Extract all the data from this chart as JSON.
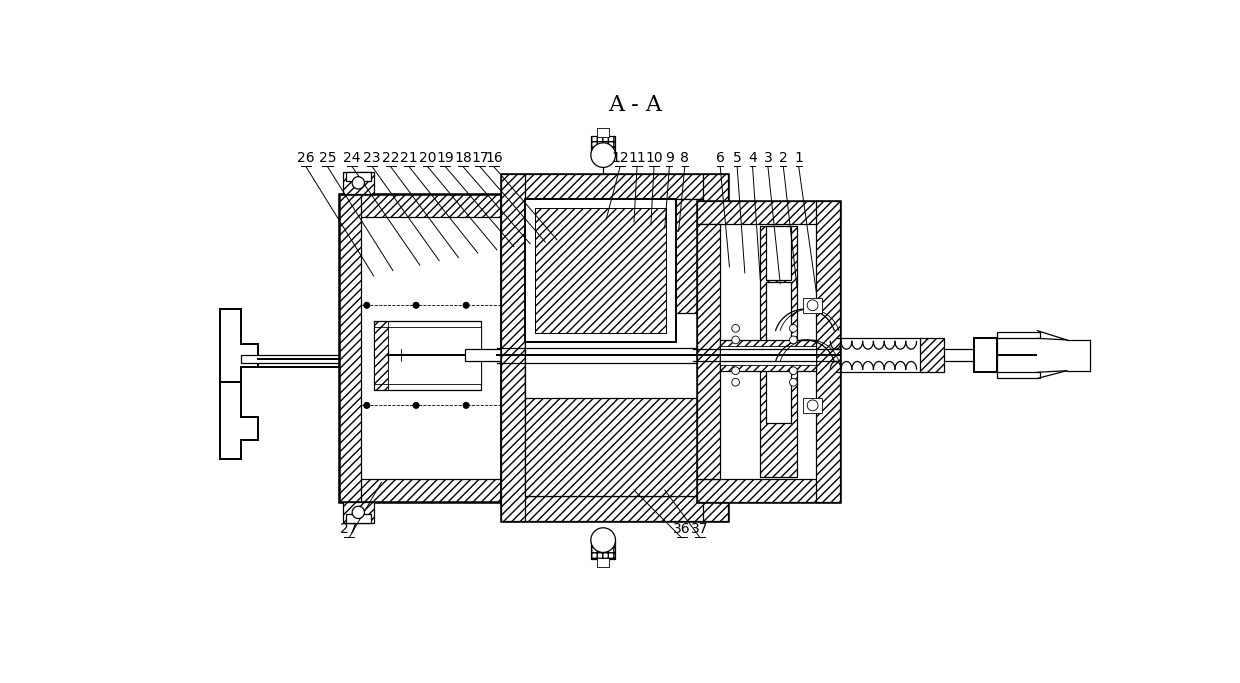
{
  "title": "A - A",
  "bg_color": "#ffffff",
  "line_color": "#000000",
  "title_fontsize": 16,
  "label_fontsize": 10,
  "fig_width": 12.4,
  "fig_height": 6.83,
  "dpi": 100,
  "top_labels_left": [
    [
      "26",
      192,
      108,
      280,
      252
    ],
    [
      "25",
      220,
      108,
      305,
      245
    ],
    [
      "24",
      252,
      108,
      340,
      238
    ],
    [
      "23",
      278,
      108,
      365,
      232
    ],
    [
      "22",
      302,
      108,
      390,
      228
    ],
    [
      "21",
      326,
      108,
      415,
      222
    ],
    [
      "20",
      350,
      108,
      440,
      218
    ],
    [
      "19",
      373,
      108,
      462,
      214
    ],
    [
      "18",
      396,
      108,
      483,
      210
    ],
    [
      "17",
      418,
      108,
      503,
      208
    ],
    [
      "16",
      436,
      108,
      518,
      205
    ]
  ],
  "top_labels_right": [
    [
      "12",
      600,
      108,
      582,
      178
    ],
    [
      "11",
      622,
      108,
      618,
      182
    ],
    [
      "10",
      644,
      108,
      640,
      186
    ],
    [
      "9",
      664,
      108,
      658,
      190
    ],
    [
      "8",
      684,
      108,
      676,
      194
    ],
    [
      "6",
      730,
      108,
      742,
      240
    ],
    [
      "5",
      752,
      108,
      762,
      248
    ],
    [
      "4",
      772,
      108,
      782,
      256
    ],
    [
      "3",
      792,
      108,
      808,
      262
    ],
    [
      "2",
      812,
      108,
      830,
      268
    ],
    [
      "1",
      832,
      108,
      855,
      274
    ]
  ],
  "bottom_labels": [
    [
      "27",
      248,
      590,
      290,
      520
    ],
    [
      "36",
      680,
      590,
      618,
      530
    ],
    [
      "37",
      704,
      590,
      658,
      530
    ]
  ]
}
